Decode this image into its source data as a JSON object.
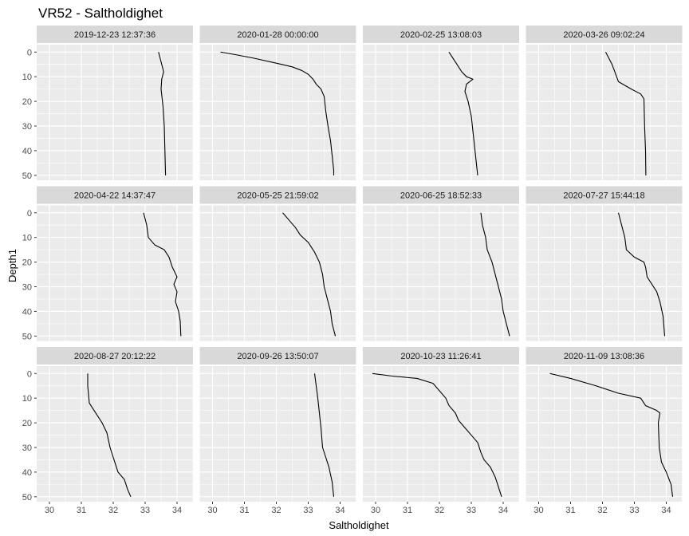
{
  "title": "VR52  -  Saltholdighet",
  "chart_data": {
    "type": "line",
    "facet": "small-multiples",
    "layout": {
      "rows": 3,
      "cols": 4
    },
    "xlabel": "Saltholdighet",
    "ylabel": "Depth1",
    "xlim": [
      29.6,
      34.5
    ],
    "ylim": [
      -3,
      52
    ],
    "y_reversed": true,
    "x_ticks": [
      30,
      31,
      32,
      33,
      34
    ],
    "y_ticks": [
      0,
      10,
      20,
      30,
      40,
      50
    ],
    "grid": true,
    "colors": {
      "panel_bg": "#ebebeb",
      "strip_bg": "#d9d9d9",
      "grid": "#ffffff",
      "line": "#000000"
    },
    "panels": [
      {
        "label": "2019-12-23 12:37:36",
        "points": [
          [
            33.42,
            0
          ],
          [
            33.5,
            4
          ],
          [
            33.58,
            8
          ],
          [
            33.52,
            11
          ],
          [
            33.5,
            15
          ],
          [
            33.56,
            22
          ],
          [
            33.6,
            30
          ],
          [
            33.62,
            40
          ],
          [
            33.64,
            50
          ]
        ]
      },
      {
        "label": "2020-01-28 00:00:00",
        "points": [
          [
            30.25,
            0
          ],
          [
            30.7,
            1
          ],
          [
            31.3,
            2.5
          ],
          [
            32.0,
            4.5
          ],
          [
            32.5,
            6
          ],
          [
            32.8,
            7.5
          ],
          [
            33.0,
            9
          ],
          [
            33.15,
            11
          ],
          [
            33.25,
            13
          ],
          [
            33.4,
            15
          ],
          [
            33.5,
            18
          ],
          [
            33.55,
            24
          ],
          [
            33.62,
            30
          ],
          [
            33.7,
            36
          ],
          [
            33.75,
            42
          ],
          [
            33.8,
            48
          ],
          [
            33.8,
            50
          ]
        ]
      },
      {
        "label": "2020-02-25 13:08:03",
        "points": [
          [
            32.3,
            0
          ],
          [
            32.4,
            2
          ],
          [
            32.55,
            5
          ],
          [
            32.7,
            8
          ],
          [
            32.85,
            10
          ],
          [
            33.05,
            11
          ],
          [
            32.85,
            13
          ],
          [
            32.8,
            16
          ],
          [
            32.9,
            20
          ],
          [
            33.0,
            26
          ],
          [
            33.05,
            32
          ],
          [
            33.1,
            38
          ],
          [
            33.15,
            44
          ],
          [
            33.2,
            50
          ]
        ]
      },
      {
        "label": "2020-03-26 09:02:24",
        "points": [
          [
            32.1,
            0
          ],
          [
            32.3,
            5
          ],
          [
            32.5,
            12
          ],
          [
            32.9,
            15
          ],
          [
            33.2,
            17
          ],
          [
            33.3,
            19
          ],
          [
            33.32,
            30
          ],
          [
            33.35,
            40
          ],
          [
            33.36,
            50
          ]
        ]
      },
      {
        "label": "2020-04-22 14:37:47",
        "points": [
          [
            32.95,
            0
          ],
          [
            33.05,
            5
          ],
          [
            33.1,
            10
          ],
          [
            33.3,
            13
          ],
          [
            33.6,
            15
          ],
          [
            33.75,
            18
          ],
          [
            33.85,
            22
          ],
          [
            34.0,
            26
          ],
          [
            33.9,
            29
          ],
          [
            34.0,
            32
          ],
          [
            33.95,
            36
          ],
          [
            34.05,
            40
          ],
          [
            34.1,
            44
          ],
          [
            34.12,
            50
          ]
        ]
      },
      {
        "label": "2020-05-25 21:59:02",
        "points": [
          [
            32.2,
            0
          ],
          [
            32.4,
            3
          ],
          [
            32.6,
            6
          ],
          [
            32.75,
            9
          ],
          [
            33.0,
            12
          ],
          [
            33.2,
            16
          ],
          [
            33.35,
            20
          ],
          [
            33.45,
            25
          ],
          [
            33.5,
            30
          ],
          [
            33.6,
            35
          ],
          [
            33.7,
            40
          ],
          [
            33.75,
            45
          ],
          [
            33.85,
            50
          ]
        ]
      },
      {
        "label": "2020-06-25 18:52:33",
        "points": [
          [
            33.3,
            0
          ],
          [
            33.35,
            5
          ],
          [
            33.45,
            10
          ],
          [
            33.5,
            15
          ],
          [
            33.65,
            20
          ],
          [
            33.75,
            25
          ],
          [
            33.85,
            30
          ],
          [
            33.95,
            35
          ],
          [
            34.0,
            40
          ],
          [
            34.1,
            45
          ],
          [
            34.2,
            50
          ]
        ]
      },
      {
        "label": "2020-07-27 15:44:18",
        "points": [
          [
            32.5,
            0
          ],
          [
            32.6,
            5
          ],
          [
            32.7,
            10
          ],
          [
            32.75,
            15
          ],
          [
            33.0,
            18
          ],
          [
            33.3,
            20
          ],
          [
            33.35,
            22
          ],
          [
            33.4,
            26
          ],
          [
            33.55,
            29
          ],
          [
            33.7,
            32
          ],
          [
            33.8,
            36
          ],
          [
            33.9,
            42
          ],
          [
            33.95,
            50
          ]
        ]
      },
      {
        "label": "2020-08-27 20:12:22",
        "points": [
          [
            31.2,
            0
          ],
          [
            31.2,
            5
          ],
          [
            31.25,
            12
          ],
          [
            31.45,
            16
          ],
          [
            31.65,
            20
          ],
          [
            31.8,
            24
          ],
          [
            31.9,
            30
          ],
          [
            32.05,
            36
          ],
          [
            32.15,
            40
          ],
          [
            32.35,
            43
          ],
          [
            32.45,
            47
          ],
          [
            32.55,
            50
          ]
        ]
      },
      {
        "label": "2020-09-26 13:50:07",
        "points": [
          [
            33.2,
            0
          ],
          [
            33.25,
            5
          ],
          [
            33.3,
            10
          ],
          [
            33.35,
            16
          ],
          [
            33.4,
            22
          ],
          [
            33.45,
            30
          ],
          [
            33.55,
            34
          ],
          [
            33.65,
            38
          ],
          [
            33.75,
            44
          ],
          [
            33.8,
            50
          ]
        ]
      },
      {
        "label": "2020-10-23 11:26:41",
        "points": [
          [
            29.9,
            0
          ],
          [
            30.5,
            1
          ],
          [
            31.3,
            2
          ],
          [
            31.8,
            4
          ],
          [
            32.0,
            7
          ],
          [
            32.2,
            10
          ],
          [
            32.3,
            13
          ],
          [
            32.5,
            16
          ],
          [
            32.6,
            19
          ],
          [
            32.8,
            22
          ],
          [
            33.0,
            25
          ],
          [
            33.2,
            28
          ],
          [
            33.3,
            32
          ],
          [
            33.4,
            35
          ],
          [
            33.6,
            38
          ],
          [
            33.75,
            42
          ],
          [
            33.85,
            46
          ],
          [
            33.95,
            50
          ]
        ]
      },
      {
        "label": "2020-11-09 13:08:36",
        "points": [
          [
            30.35,
            0
          ],
          [
            31.0,
            2
          ],
          [
            31.8,
            5
          ],
          [
            32.5,
            8
          ],
          [
            33.2,
            10
          ],
          [
            33.35,
            13
          ],
          [
            33.7,
            15
          ],
          [
            33.8,
            16
          ],
          [
            33.75,
            20
          ],
          [
            33.78,
            30
          ],
          [
            33.85,
            36
          ],
          [
            34.0,
            40
          ],
          [
            34.15,
            45
          ],
          [
            34.2,
            50
          ]
        ]
      }
    ]
  }
}
